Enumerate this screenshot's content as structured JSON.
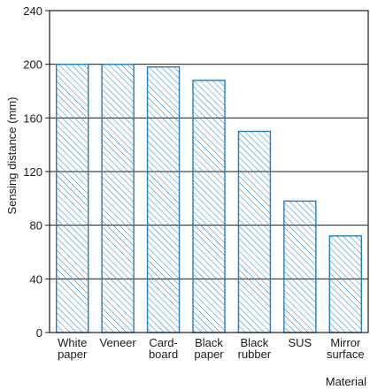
{
  "chart_data": {
    "type": "bar",
    "categories": [
      [
        "White",
        "paper"
      ],
      [
        "Veneer"
      ],
      [
        "Card-",
        "board"
      ],
      [
        "Black",
        "paper"
      ],
      [
        "Black",
        "rubber"
      ],
      [
        "SUS"
      ],
      [
        "Mirror",
        "surface"
      ]
    ],
    "values": [
      200,
      200,
      198,
      188,
      150,
      98,
      72
    ],
    "title": "",
    "xlabel": "Material",
    "ylabel": "Sensing distance (mm)",
    "ylim": [
      0,
      240
    ],
    "yticks": [
      "0",
      "40",
      "80",
      "120",
      "160",
      "200",
      "240"
    ],
    "grid": true,
    "bar_color": "#1f7fbf",
    "bar_fill": "diagonal-hatch"
  }
}
